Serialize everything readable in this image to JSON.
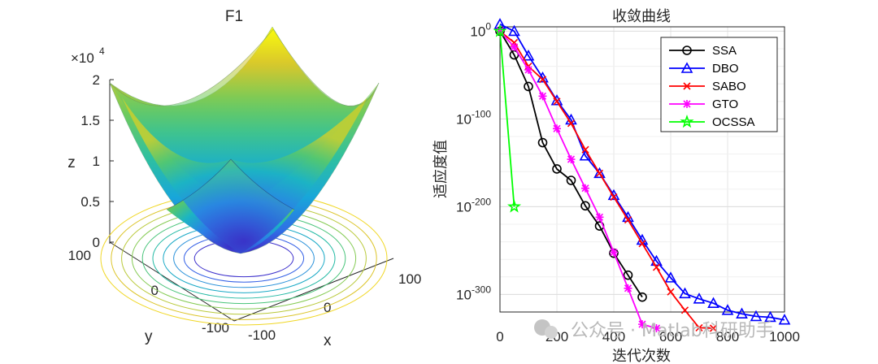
{
  "chart_data": [
    {
      "type": "surface",
      "title": "F1",
      "xlabel": "x",
      "ylabel": "y",
      "zlabel": "z",
      "z_multiplier": "×10",
      "z_exponent": "4",
      "xlim": [
        -100,
        100
      ],
      "ylim": [
        -100,
        100
      ],
      "zlim": [
        0,
        2
      ],
      "x_ticks": [
        "-100",
        "0",
        "100"
      ],
      "y_ticks": [
        "-100",
        "0",
        "100"
      ],
      "z_ticks": [
        "0",
        "0.5",
        "1",
        "1.5",
        "2"
      ],
      "function": "z = x^2 + y^2",
      "colormap": "parula",
      "contour_levels": 10
    },
    {
      "type": "line",
      "title": "收敛曲线",
      "xlabel": "迭代次数",
      "ylabel": "适应度值",
      "y_scale": "log",
      "xlim": [
        0,
        1000
      ],
      "ylim_exponent": [
        -320,
        5
      ],
      "x_ticks": [
        "0",
        "200",
        "400",
        "600",
        "800",
        "1000"
      ],
      "y_tick_base": "10",
      "y_ticks": [
        {
          "exp": 0,
          "text": "0"
        },
        {
          "exp": -100,
          "text": "-100"
        },
        {
          "exp": -200,
          "text": "-200"
        },
        {
          "exp": -300,
          "text": "-300"
        }
      ],
      "grid": true,
      "legend": "top-right",
      "series": [
        {
          "name": "SSA",
          "color": "#000000",
          "marker": "circle",
          "x": [
            0,
            50,
            100,
            150,
            200,
            250,
            300,
            350,
            400,
            450,
            500
          ],
          "exp": [
            0,
            -27,
            -63,
            -127,
            -157,
            -170,
            -199,
            -222,
            -253,
            -278,
            -303
          ]
        },
        {
          "name": "DBO",
          "color": "#0000ff",
          "marker": "triangle",
          "x": [
            0,
            50,
            100,
            150,
            200,
            250,
            300,
            350,
            400,
            450,
            500,
            550,
            600,
            650,
            700,
            750,
            800,
            850,
            900,
            950,
            1000
          ],
          "exp": [
            8,
            0,
            -28,
            -53,
            -79,
            -101,
            -142,
            -162,
            -187,
            -212,
            -238,
            -262,
            -281,
            -299,
            -305,
            -310,
            -318,
            -322,
            -325,
            -326,
            -329
          ]
        },
        {
          "name": "SABO",
          "color": "#ff0000",
          "marker": "x",
          "x": [
            0,
            50,
            100,
            150,
            200,
            250,
            300,
            350,
            400,
            450,
            500,
            550,
            600,
            650,
            700,
            750
          ],
          "exp": [
            0,
            -13,
            -40,
            -55,
            -80,
            -105,
            -135,
            -162,
            -189,
            -215,
            -242,
            -269,
            -297,
            -318,
            -338,
            -352
          ]
        },
        {
          "name": "GTO",
          "color": "#ff00ff",
          "marker": "asterisk",
          "x": [
            0,
            50,
            100,
            150,
            200,
            250,
            300,
            350,
            400,
            450,
            500,
            550
          ],
          "exp": [
            0,
            -18,
            -44,
            -74,
            -111,
            -146,
            -179,
            -212,
            -252,
            -293,
            -334,
            -352
          ]
        },
        {
          "name": "OCSSA",
          "color": "#00ff00",
          "marker": "star",
          "x": [
            0,
            50
          ],
          "exp": [
            0,
            -200
          ]
        }
      ]
    }
  ],
  "watermark": {
    "text": "公众号 · Matlab科研助手"
  }
}
